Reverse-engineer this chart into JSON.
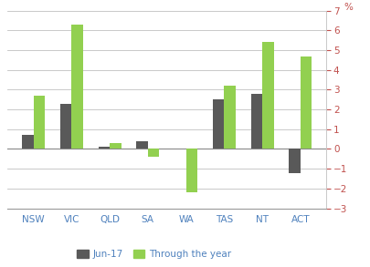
{
  "categories": [
    "NSW",
    "VIC",
    "QLD",
    "SA",
    "WA",
    "TAS",
    "NT",
    "ACT"
  ],
  "jun17_values": [
    0.7,
    2.3,
    0.1,
    0.4,
    0.0,
    2.5,
    2.8,
    -1.2
  ],
  "through_year_values": [
    2.7,
    6.3,
    0.3,
    -0.4,
    -2.2,
    3.2,
    5.4,
    4.7
  ],
  "jun17_color": "#595959",
  "through_year_color": "#92d050",
  "ylim": [
    -3,
    7
  ],
  "yticks": [
    -3,
    -2,
    -1,
    0,
    1,
    2,
    3,
    4,
    5,
    6,
    7
  ],
  "ylabel": "%",
  "legend_labels": [
    "Jun-17",
    "Through the year"
  ],
  "bar_width": 0.3,
  "background_color": "#ffffff",
  "grid_color": "#c0c0c0",
  "tick_label_color": "#c0504d",
  "x_label_color": "#4f81bd",
  "label_fontsize": 7.5
}
